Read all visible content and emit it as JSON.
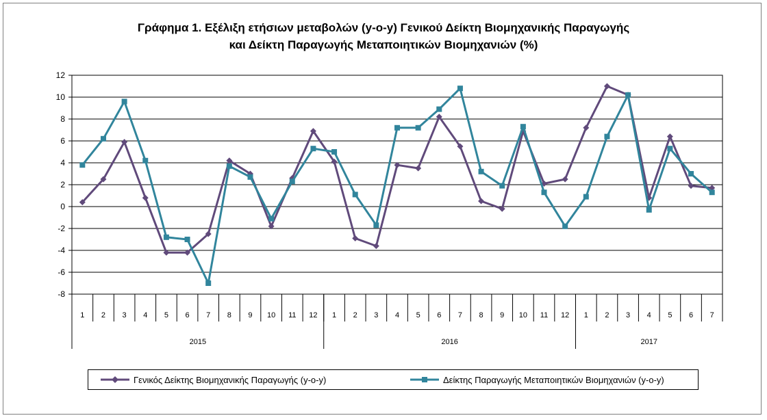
{
  "chart_data": {
    "type": "line",
    "title_line1": "Γράφημα 1. Εξέλιξη ετήσιων μεταβολών (y-o-y) Γενικού Δείκτη Βιομηχανικής Παραγωγής",
    "title_line2": "και Δείκτη Παραγωγής Μεταποιητικών Βιομηχανιών (%)",
    "ylim": [
      -8,
      12
    ],
    "yticks": [
      -8,
      -6,
      -4,
      -2,
      0,
      2,
      4,
      6,
      8,
      10,
      12
    ],
    "grid": true,
    "legend_position": "bottom",
    "categories": [
      "1",
      "2",
      "3",
      "4",
      "5",
      "6",
      "7",
      "8",
      "9",
      "10",
      "11",
      "12",
      "1",
      "2",
      "3",
      "4",
      "5",
      "6",
      "7",
      "8",
      "9",
      "10",
      "11",
      "12",
      "1",
      "2",
      "3",
      "4",
      "5",
      "6",
      "7"
    ],
    "groups": [
      {
        "label": "2015",
        "count": 12
      },
      {
        "label": "2016",
        "count": 12
      },
      {
        "label": "2017",
        "count": 7
      }
    ],
    "series": [
      {
        "name": "Γενικός Δείκτης Βιομηχανικής Παραγωγής (y-o-y)",
        "color": "#604a7b",
        "marker": "diamond",
        "values": [
          0.4,
          2.5,
          5.9,
          0.8,
          -4.2,
          -4.2,
          -2.5,
          4.2,
          3.0,
          -1.8,
          2.6,
          6.9,
          4.1,
          -2.9,
          -3.6,
          3.8,
          3.5,
          8.2,
          5.5,
          0.5,
          -0.2,
          6.9,
          2.1,
          2.5,
          7.2,
          11.0,
          10.2,
          0.8,
          6.4,
          1.9,
          1.7
        ]
      },
      {
        "name": "Δείκτης Παραγωγής Μεταποιητικών Βιομηχανιών (y-o-y)",
        "color": "#31859c",
        "marker": "square",
        "values": [
          3.8,
          6.2,
          9.6,
          4.2,
          -2.8,
          -3.0,
          -7.0,
          3.7,
          2.7,
          -1.1,
          2.3,
          5.3,
          5.0,
          1.1,
          -1.7,
          7.2,
          7.2,
          8.9,
          10.8,
          3.2,
          1.9,
          7.3,
          1.3,
          -1.8,
          0.9,
          6.4,
          10.2,
          -0.3,
          5.3,
          3.0,
          1.3
        ]
      }
    ]
  }
}
